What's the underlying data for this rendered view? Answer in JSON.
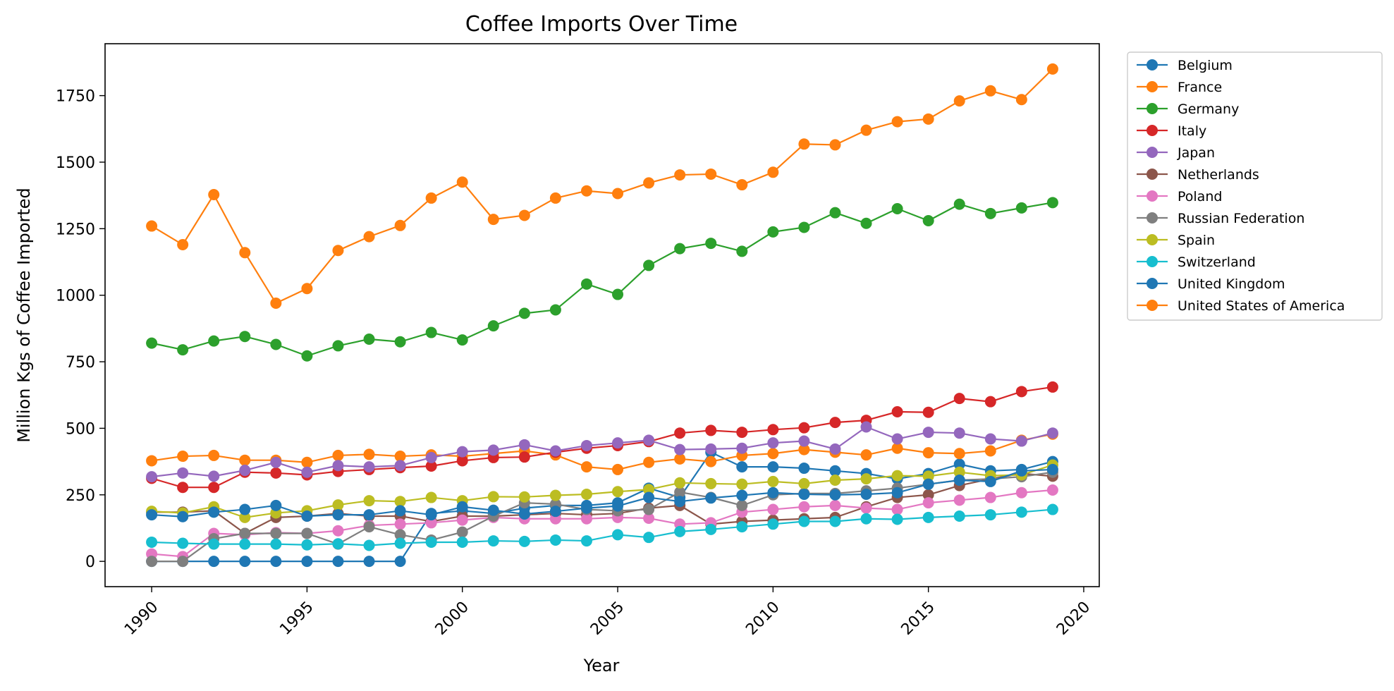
{
  "chart_data": {
    "type": "line",
    "title": "Coffee Imports Over Time",
    "xlabel": "Year",
    "ylabel": "Million Kgs of Coffee Imported",
    "xlim": [
      1988.5,
      2020.5
    ],
    "ylim": [
      -95,
      1945
    ],
    "xticks": [
      1990,
      1995,
      2000,
      2005,
      2010,
      2015,
      2020
    ],
    "yticks": [
      0,
      250,
      500,
      750,
      1000,
      1250,
      1500,
      1750
    ],
    "grid": false,
    "legend_position": "outside top-right",
    "x": [
      1990,
      1991,
      1992,
      1993,
      1994,
      1995,
      1996,
      1997,
      1998,
      1999,
      2000,
      2001,
      2002,
      2003,
      2004,
      2005,
      2006,
      2007,
      2008,
      2009,
      2010,
      2011,
      2012,
      2013,
      2014,
      2015,
      2016,
      2017,
      2018,
      2019
    ],
    "series": [
      {
        "name": "Belgium",
        "color": "#1f77b4",
        "values": [
          0,
          0,
          0,
          0,
          0,
          0,
          0,
          0,
          0,
          180,
          190,
          180,
          200,
          210,
          210,
          220,
          275,
          240,
          410,
          355,
          355,
          350,
          340,
          330,
          310,
          330,
          365,
          340,
          345,
          375
        ]
      },
      {
        "name": "France",
        "color": "#ff7f0e",
        "values": [
          378,
          395,
          398,
          380,
          380,
          372,
          398,
          402,
          395,
          400,
          395,
          405,
          415,
          400,
          355,
          345,
          372,
          385,
          375,
          398,
          405,
          420,
          410,
          400,
          425,
          408,
          405,
          415,
          455,
          478
        ]
      },
      {
        "name": "Germany",
        "color": "#2ca02c",
        "values": [
          820,
          795,
          828,
          845,
          815,
          772,
          810,
          835,
          825,
          860,
          832,
          885,
          932,
          945,
          1042,
          1003,
          1112,
          1175,
          1195,
          1165,
          1238,
          1255,
          1310,
          1270,
          1325,
          1280,
          1342,
          1307,
          1328,
          1348
        ]
      },
      {
        "name": "Italy",
        "color": "#d62728",
        "values": [
          312,
          278,
          278,
          335,
          332,
          325,
          338,
          345,
          352,
          358,
          378,
          390,
          392,
          410,
          425,
          435,
          450,
          482,
          492,
          485,
          495,
          502,
          522,
          530,
          562,
          560,
          612,
          600,
          638,
          655
        ]
      },
      {
        "name": "Japan",
        "color": "#9467bd",
        "values": [
          318,
          332,
          320,
          342,
          372,
          335,
          360,
          355,
          360,
          390,
          412,
          418,
          438,
          415,
          435,
          445,
          455,
          420,
          422,
          425,
          445,
          452,
          422,
          505,
          460,
          485,
          482,
          460,
          452,
          482
        ]
      },
      {
        "name": "Netherlands",
        "color": "#8c564b",
        "values": [
          185,
          185,
          190,
          105,
          165,
          170,
          180,
          170,
          170,
          150,
          170,
          170,
          175,
          180,
          175,
          180,
          200,
          210,
          140,
          150,
          155,
          160,
          165,
          205,
          240,
          250,
          285,
          310,
          330,
          320
        ]
      },
      {
        "name": "Poland",
        "color": "#e377c2",
        "values": [
          28,
          18,
          105,
          100,
          108,
          105,
          115,
          135,
          140,
          145,
          155,
          165,
          160,
          160,
          160,
          165,
          162,
          140,
          145,
          185,
          195,
          205,
          210,
          200,
          195,
          220,
          230,
          240,
          258,
          268
        ]
      },
      {
        "name": "Russian Federation",
        "color": "#7f7f7f",
        "values": [
          0,
          0,
          85,
          105,
          105,
          105,
          65,
          130,
          100,
          80,
          110,
          170,
          220,
          215,
          195,
          190,
          195,
          260,
          240,
          210,
          250,
          255,
          255,
          265,
          275,
          290,
          305,
          310,
          318,
          335
        ]
      },
      {
        "name": "Spain",
        "color": "#bcbd22",
        "values": [
          188,
          182,
          205,
          165,
          182,
          190,
          212,
          228,
          225,
          240,
          228,
          243,
          242,
          248,
          252,
          262,
          270,
          295,
          292,
          290,
          300,
          292,
          305,
          310,
          322,
          320,
          335,
          322,
          325,
          362
        ]
      },
      {
        "name": "Switzerland",
        "color": "#17becf",
        "values": [
          72,
          68,
          65,
          65,
          65,
          62,
          66,
          60,
          68,
          72,
          72,
          77,
          75,
          80,
          77,
          100,
          90,
          112,
          120,
          130,
          140,
          150,
          150,
          160,
          158,
          165,
          170,
          175,
          185,
          195
        ]
      },
      {
        "name": "United Kingdom",
        "color": "#1f77b4",
        "values": [
          175,
          168,
          185,
          195,
          210,
          170,
          175,
          175,
          190,
          175,
          205,
          192,
          178,
          188,
          200,
          208,
          240,
          225,
          238,
          248,
          258,
          252,
          250,
          252,
          258,
          290,
          305,
          300,
          340,
          345
        ]
      },
      {
        "name": "United States of America",
        "color": "#ff7f0e",
        "values": [
          1260,
          1190,
          1378,
          1160,
          970,
          1025,
          1168,
          1220,
          1262,
          1365,
          1425,
          1285,
          1300,
          1365,
          1392,
          1382,
          1422,
          1452,
          1455,
          1415,
          1462,
          1568,
          1565,
          1620,
          1652,
          1662,
          1730,
          1768,
          1735,
          1850
        ]
      }
    ]
  }
}
